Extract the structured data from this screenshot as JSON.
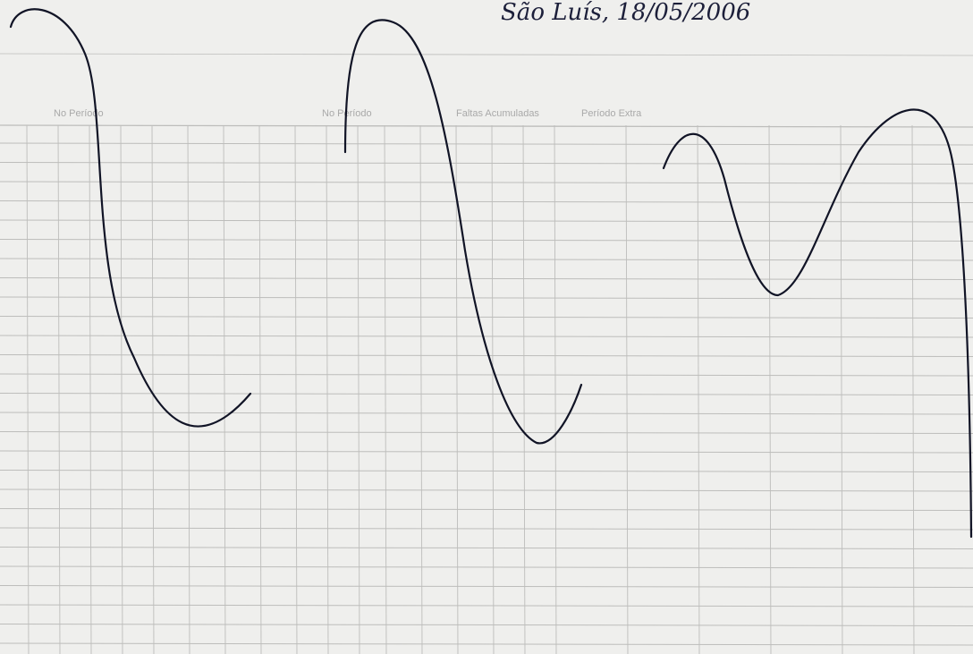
{
  "header": {
    "handwritten_note": "São Luís, 18/05/2006"
  },
  "table": {
    "column_headers": [
      "No Período",
      "No Período",
      "Faltas Acumuladas",
      "Período Extra"
    ]
  }
}
